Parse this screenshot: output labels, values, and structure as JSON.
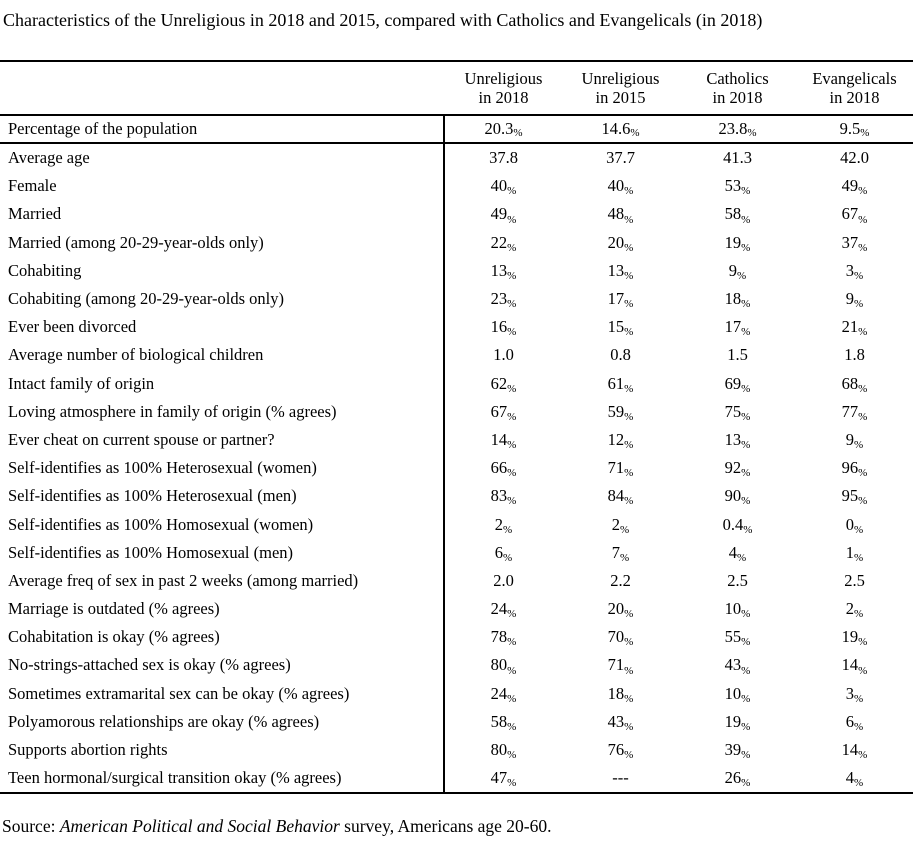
{
  "title": "Characteristics of the Unreligious in 2018 and 2015, compared with Catholics and Evangelicals (in 2018)",
  "colors": {
    "text": "#000000",
    "background": "#ffffff",
    "rule_lines": "#000000"
  },
  "table": {
    "columns": [
      {
        "line1": "Unreligious",
        "line2": "in 2018"
      },
      {
        "line1": "Unreligious",
        "line2": "in 2015"
      },
      {
        "line1": "Catholics",
        "line2": "in 2018"
      },
      {
        "line1": "Evangelicals",
        "line2": "in 2018"
      }
    ],
    "summary_row": {
      "label": "Percentage of the population",
      "values": [
        "20.3%",
        "14.6%",
        "23.8%",
        "9.5%"
      ]
    },
    "rows": [
      {
        "label": "Average age",
        "values": [
          "37.8",
          "37.7",
          "41.3",
          "42.0"
        ]
      },
      {
        "label": "Female",
        "values": [
          "40%",
          "40%",
          "53%",
          "49%"
        ]
      },
      {
        "label": "Married",
        "values": [
          "49%",
          "48%",
          "58%",
          "67%"
        ]
      },
      {
        "label": "Married (among 20-29-year-olds only)",
        "values": [
          "22%",
          "20%",
          "19%",
          "37%"
        ]
      },
      {
        "label": "Cohabiting",
        "values": [
          "13%",
          "13%",
          "9%",
          "3%"
        ]
      },
      {
        "label": "Cohabiting (among 20-29-year-olds only)",
        "values": [
          "23%",
          "17%",
          "18%",
          "9%"
        ]
      },
      {
        "label": "Ever been divorced",
        "values": [
          "16%",
          "15%",
          "17%",
          "21%"
        ]
      },
      {
        "label": "Average number of biological children",
        "values": [
          "1.0",
          "0.8",
          "1.5",
          "1.8"
        ]
      },
      {
        "label": "Intact family of origin",
        "values": [
          "62%",
          "61%",
          "69%",
          "68%"
        ]
      },
      {
        "label": "Loving atmosphere in family of origin (% agrees)",
        "values": [
          "67%",
          "59%",
          "75%",
          "77%"
        ]
      },
      {
        "label": "Ever cheat on current spouse or partner?",
        "values": [
          "14%",
          "12%",
          "13%",
          "9%"
        ]
      },
      {
        "label": "Self-identifies as 100% Heterosexual (women)",
        "values": [
          "66%",
          "71%",
          "92%",
          "96%"
        ]
      },
      {
        "label": "Self-identifies as 100% Heterosexual (men)",
        "values": [
          "83%",
          "84%",
          "90%",
          "95%"
        ]
      },
      {
        "label": "Self-identifies as 100% Homosexual (women)",
        "values": [
          "2%",
          "2%",
          "0.4%",
          "0%"
        ]
      },
      {
        "label": "Self-identifies as 100% Homosexual (men)",
        "values": [
          "6%",
          "7%",
          "4%",
          "1%"
        ]
      },
      {
        "label": "Average freq of sex in past 2 weeks (among married)",
        "values": [
          "2.0",
          "2.2",
          "2.5",
          "2.5"
        ]
      },
      {
        "label": "Marriage is outdated (% agrees)",
        "values": [
          "24%",
          "20%",
          "10%",
          "2%"
        ]
      },
      {
        "label": "Cohabitation is okay (% agrees)",
        "values": [
          "78%",
          "70%",
          "55%",
          "19%"
        ]
      },
      {
        "label": "No-strings-attached sex is okay (% agrees)",
        "values": [
          "80%",
          "71%",
          "43%",
          "14%"
        ]
      },
      {
        "label": "Sometimes extramarital sex can be okay (% agrees)",
        "values": [
          "24%",
          "18%",
          "10%",
          "3%"
        ]
      },
      {
        "label": "Polyamorous relationships are okay (% agrees)",
        "values": [
          "58%",
          "43%",
          "19%",
          "6%"
        ]
      },
      {
        "label": "Supports abortion rights",
        "values": [
          "80%",
          "76%",
          "39%",
          "14%"
        ]
      },
      {
        "label": "Teen hormonal/surgical transition okay (% agrees)",
        "values": [
          "47%",
          "---",
          "26%",
          "4%"
        ]
      }
    ],
    "missing_value_marker": "---"
  },
  "source": {
    "prefix": "Source: ",
    "italic": "American Political and Social Behavior",
    "suffix": " survey, Americans age 20-60."
  }
}
